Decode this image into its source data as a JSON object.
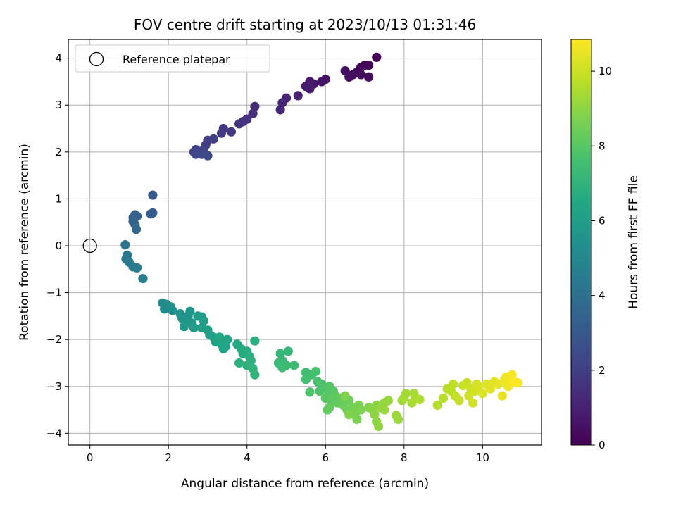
{
  "chart_data": {
    "type": "scatter",
    "title": "FOV centre drift starting at 2023/10/13 01:31:46",
    "xlabel": "Angular distance from reference (arcmin)",
    "ylabel": "Rotation from reference (arcmin)",
    "xlim": [
      -0.55,
      11.5
    ],
    "ylim": [
      -4.25,
      4.4
    ],
    "xticks": [
      0,
      2,
      4,
      6,
      8,
      10
    ],
    "yticks": [
      -4,
      -3,
      -2,
      -1,
      0,
      1,
      2,
      3,
      4
    ],
    "grid": true,
    "legend": {
      "position": "top-left",
      "label": "Reference platepar"
    },
    "reference_point": {
      "x": 0,
      "y": 0
    },
    "colorbar": {
      "label": "Hours from first FF file",
      "colormap": "viridis",
      "range": [
        0,
        10.85
      ],
      "ticks": [
        0,
        2,
        4,
        6,
        8,
        10
      ]
    },
    "points": [
      {
        "x": 7.3,
        "y": 4.02,
        "c": 0.0
      },
      {
        "x": 7.1,
        "y": 3.85,
        "c": 0.1
      },
      {
        "x": 7.0,
        "y": 3.85,
        "c": 0.15
      },
      {
        "x": 6.9,
        "y": 3.8,
        "c": 0.2
      },
      {
        "x": 6.8,
        "y": 3.7,
        "c": 0.25
      },
      {
        "x": 6.9,
        "y": 3.65,
        "c": 0.3
      },
      {
        "x": 7.1,
        "y": 3.6,
        "c": 0.3
      },
      {
        "x": 6.7,
        "y": 3.65,
        "c": 0.35
      },
      {
        "x": 6.6,
        "y": 3.6,
        "c": 0.4
      },
      {
        "x": 6.5,
        "y": 3.73,
        "c": 0.45
      },
      {
        "x": 6.0,
        "y": 3.55,
        "c": 0.55
      },
      {
        "x": 5.9,
        "y": 3.5,
        "c": 0.6
      },
      {
        "x": 5.7,
        "y": 3.45,
        "c": 0.7
      },
      {
        "x": 5.6,
        "y": 3.5,
        "c": 0.75
      },
      {
        "x": 5.5,
        "y": 3.4,
        "c": 0.8
      },
      {
        "x": 5.6,
        "y": 3.35,
        "c": 0.85
      },
      {
        "x": 5.3,
        "y": 3.2,
        "c": 1.0
      },
      {
        "x": 5.0,
        "y": 3.15,
        "c": 1.1
      },
      {
        "x": 4.9,
        "y": 3.05,
        "c": 1.15
      },
      {
        "x": 4.85,
        "y": 2.9,
        "c": 1.2
      },
      {
        "x": 4.2,
        "y": 2.97,
        "c": 1.4
      },
      {
        "x": 4.15,
        "y": 2.82,
        "c": 1.45
      },
      {
        "x": 4.0,
        "y": 2.7,
        "c": 1.55
      },
      {
        "x": 3.9,
        "y": 2.65,
        "c": 1.6
      },
      {
        "x": 3.8,
        "y": 2.6,
        "c": 1.65
      },
      {
        "x": 3.6,
        "y": 2.43,
        "c": 1.75
      },
      {
        "x": 3.4,
        "y": 2.5,
        "c": 1.8
      },
      {
        "x": 3.35,
        "y": 2.4,
        "c": 1.85
      },
      {
        "x": 3.15,
        "y": 2.28,
        "c": 1.95
      },
      {
        "x": 3.0,
        "y": 2.25,
        "c": 2.0
      },
      {
        "x": 2.95,
        "y": 2.15,
        "c": 2.05
      },
      {
        "x": 2.9,
        "y": 2.05,
        "c": 2.1
      },
      {
        "x": 2.8,
        "y": 2.0,
        "c": 2.15
      },
      {
        "x": 2.7,
        "y": 2.05,
        "c": 2.2
      },
      {
        "x": 2.65,
        "y": 2.0,
        "c": 2.25
      },
      {
        "x": 2.7,
        "y": 1.95,
        "c": 2.3
      },
      {
        "x": 2.85,
        "y": 1.95,
        "c": 2.35
      },
      {
        "x": 3.0,
        "y": 1.92,
        "c": 2.4
      },
      {
        "x": 1.6,
        "y": 1.08,
        "c": 3.0
      },
      {
        "x": 1.6,
        "y": 0.7,
        "c": 3.1
      },
      {
        "x": 1.55,
        "y": 0.68,
        "c": 3.15
      },
      {
        "x": 1.15,
        "y": 0.66,
        "c": 3.3
      },
      {
        "x": 1.1,
        "y": 0.6,
        "c": 3.35
      },
      {
        "x": 1.2,
        "y": 0.63,
        "c": 3.4
      },
      {
        "x": 1.1,
        "y": 0.52,
        "c": 3.45
      },
      {
        "x": 1.15,
        "y": 0.45,
        "c": 3.5
      },
      {
        "x": 1.18,
        "y": 0.35,
        "c": 3.6
      },
      {
        "x": 0.9,
        "y": 0.02,
        "c": 4.2
      },
      {
        "x": 0.95,
        "y": -0.2,
        "c": 4.3
      },
      {
        "x": 0.92,
        "y": -0.28,
        "c": 4.35
      },
      {
        "x": 1.0,
        "y": -0.35,
        "c": 4.4
      },
      {
        "x": 1.1,
        "y": -0.45,
        "c": 4.45
      },
      {
        "x": 1.2,
        "y": -0.47,
        "c": 4.5
      },
      {
        "x": 1.35,
        "y": -0.7,
        "c": 4.6
      },
      {
        "x": 1.85,
        "y": -1.22,
        "c": 5.2
      },
      {
        "x": 1.95,
        "y": -1.25,
        "c": 5.25
      },
      {
        "x": 1.9,
        "y": -1.35,
        "c": 5.3
      },
      {
        "x": 2.05,
        "y": -1.3,
        "c": 5.35
      },
      {
        "x": 2.1,
        "y": -1.38,
        "c": 5.4
      },
      {
        "x": 2.3,
        "y": -1.45,
        "c": 5.5
      },
      {
        "x": 2.35,
        "y": -1.55,
        "c": 5.55
      },
      {
        "x": 2.5,
        "y": -1.5,
        "c": 5.6
      },
      {
        "x": 2.55,
        "y": -1.4,
        "c": 5.65
      },
      {
        "x": 2.45,
        "y": -1.62,
        "c": 5.7
      },
      {
        "x": 2.4,
        "y": -1.72,
        "c": 5.75
      },
      {
        "x": 2.6,
        "y": -1.65,
        "c": 5.8
      },
      {
        "x": 2.65,
        "y": -1.75,
        "c": 5.85
      },
      {
        "x": 2.75,
        "y": -1.5,
        "c": 5.9
      },
      {
        "x": 2.85,
        "y": -1.52,
        "c": 5.95
      },
      {
        "x": 2.9,
        "y": -1.6,
        "c": 6.0
      },
      {
        "x": 2.85,
        "y": -1.75,
        "c": 6.0
      },
      {
        "x": 3.0,
        "y": -1.8,
        "c": 6.05
      },
      {
        "x": 3.05,
        "y": -1.9,
        "c": 6.1
      },
      {
        "x": 3.15,
        "y": -1.95,
        "c": 6.15
      },
      {
        "x": 3.2,
        "y": -2.05,
        "c": 6.2
      },
      {
        "x": 3.3,
        "y": -2.0,
        "c": 6.25
      },
      {
        "x": 3.35,
        "y": -2.1,
        "c": 6.3
      },
      {
        "x": 3.45,
        "y": -2.15,
        "c": 6.35
      },
      {
        "x": 3.4,
        "y": -2.2,
        "c": 6.4
      },
      {
        "x": 3.5,
        "y": -2.0,
        "c": 6.4
      },
      {
        "x": 3.3,
        "y": -1.95,
        "c": 6.45
      },
      {
        "x": 3.75,
        "y": -2.1,
        "c": 6.55
      },
      {
        "x": 3.85,
        "y": -2.2,
        "c": 6.6
      },
      {
        "x": 3.9,
        "y": -2.3,
        "c": 6.65
      },
      {
        "x": 4.0,
        "y": -2.25,
        "c": 6.7
      },
      {
        "x": 4.05,
        "y": -2.35,
        "c": 6.75
      },
      {
        "x": 4.2,
        "y": -2.03,
        "c": 6.8
      },
      {
        "x": 4.1,
        "y": -2.45,
        "c": 6.85
      },
      {
        "x": 3.8,
        "y": -2.5,
        "c": 6.9
      },
      {
        "x": 4.0,
        "y": -2.55,
        "c": 6.95
      },
      {
        "x": 4.15,
        "y": -2.62,
        "c": 7.0
      },
      {
        "x": 4.2,
        "y": -2.75,
        "c": 7.05
      },
      {
        "x": 4.85,
        "y": -2.3,
        "c": 7.15
      },
      {
        "x": 5.05,
        "y": -2.25,
        "c": 7.2
      },
      {
        "x": 4.8,
        "y": -2.5,
        "c": 7.25
      },
      {
        "x": 4.9,
        "y": -2.45,
        "c": 7.3
      },
      {
        "x": 5.0,
        "y": -2.55,
        "c": 7.35
      },
      {
        "x": 5.2,
        "y": -2.55,
        "c": 7.4
      },
      {
        "x": 4.9,
        "y": -2.6,
        "c": 7.45
      },
      {
        "x": 5.5,
        "y": -2.7,
        "c": 7.5
      },
      {
        "x": 5.65,
        "y": -2.75,
        "c": 7.55
      },
      {
        "x": 5.5,
        "y": -2.85,
        "c": 7.6
      },
      {
        "x": 5.75,
        "y": -2.68,
        "c": 7.65
      },
      {
        "x": 5.8,
        "y": -2.9,
        "c": 7.7
      },
      {
        "x": 5.9,
        "y": -2.95,
        "c": 7.75
      },
      {
        "x": 5.85,
        "y": -3.1,
        "c": 7.8
      },
      {
        "x": 5.6,
        "y": -3.12,
        "c": 7.8
      },
      {
        "x": 6.0,
        "y": -3.05,
        "c": 7.85
      },
      {
        "x": 6.1,
        "y": -3.0,
        "c": 7.9
      },
      {
        "x": 6.1,
        "y": -3.15,
        "c": 7.95
      },
      {
        "x": 6.2,
        "y": -3.1,
        "c": 8.0
      },
      {
        "x": 6.0,
        "y": -3.25,
        "c": 8.05
      },
      {
        "x": 6.15,
        "y": -3.3,
        "c": 8.1
      },
      {
        "x": 6.25,
        "y": -3.2,
        "c": 8.15
      },
      {
        "x": 6.3,
        "y": -3.35,
        "c": 8.2
      },
      {
        "x": 6.1,
        "y": -3.45,
        "c": 8.25
      },
      {
        "x": 6.05,
        "y": -3.5,
        "c": 8.25
      },
      {
        "x": 6.4,
        "y": -3.25,
        "c": 8.3
      },
      {
        "x": 6.45,
        "y": -3.4,
        "c": 8.35
      },
      {
        "x": 6.6,
        "y": -3.3,
        "c": 8.4
      },
      {
        "x": 6.55,
        "y": -3.5,
        "c": 8.45
      },
      {
        "x": 6.65,
        "y": -3.55,
        "c": 8.5
      },
      {
        "x": 6.7,
        "y": -3.45,
        "c": 8.55
      },
      {
        "x": 6.75,
        "y": -3.6,
        "c": 8.6
      },
      {
        "x": 6.8,
        "y": -3.7,
        "c": 8.65
      },
      {
        "x": 6.9,
        "y": -3.5,
        "c": 8.7
      },
      {
        "x": 6.85,
        "y": -3.4,
        "c": 8.7
      },
      {
        "x": 6.5,
        "y": -3.2,
        "c": 8.75
      },
      {
        "x": 6.6,
        "y": -3.6,
        "c": 8.8
      },
      {
        "x": 7.1,
        "y": -3.45,
        "c": 8.85
      },
      {
        "x": 7.2,
        "y": -3.5,
        "c": 8.9
      },
      {
        "x": 7.3,
        "y": -3.4,
        "c": 8.95
      },
      {
        "x": 7.25,
        "y": -3.6,
        "c": 9.0
      },
      {
        "x": 7.3,
        "y": -3.75,
        "c": 9.0
      },
      {
        "x": 7.35,
        "y": -3.85,
        "c": 9.05
      },
      {
        "x": 7.4,
        "y": -3.45,
        "c": 9.1
      },
      {
        "x": 7.5,
        "y": -3.35,
        "c": 9.1
      },
      {
        "x": 7.6,
        "y": -3.3,
        "c": 9.15
      },
      {
        "x": 7.5,
        "y": -3.5,
        "c": 9.15
      },
      {
        "x": 7.8,
        "y": -3.62,
        "c": 9.2
      },
      {
        "x": 7.85,
        "y": -3.7,
        "c": 9.2
      },
      {
        "x": 7.95,
        "y": -3.3,
        "c": 9.3
      },
      {
        "x": 8.0,
        "y": -3.25,
        "c": 9.35
      },
      {
        "x": 8.05,
        "y": -3.15,
        "c": 9.35
      },
      {
        "x": 8.25,
        "y": -3.15,
        "c": 9.4
      },
      {
        "x": 8.2,
        "y": -3.35,
        "c": 9.45
      },
      {
        "x": 8.3,
        "y": -3.25,
        "c": 9.45
      },
      {
        "x": 8.4,
        "y": -3.28,
        "c": 9.5
      },
      {
        "x": 8.85,
        "y": -3.4,
        "c": 9.6
      },
      {
        "x": 9.0,
        "y": -3.25,
        "c": 9.65
      },
      {
        "x": 9.1,
        "y": -3.05,
        "c": 9.7
      },
      {
        "x": 9.2,
        "y": -3.1,
        "c": 9.75
      },
      {
        "x": 9.25,
        "y": -2.95,
        "c": 9.8
      },
      {
        "x": 9.3,
        "y": -3.2,
        "c": 9.85
      },
      {
        "x": 9.4,
        "y": -3.3,
        "c": 9.9
      },
      {
        "x": 9.5,
        "y": -2.98,
        "c": 9.95
      },
      {
        "x": 9.6,
        "y": -2.92,
        "c": 10.0
      },
      {
        "x": 9.7,
        "y": -3.05,
        "c": 10.0
      },
      {
        "x": 9.65,
        "y": -3.2,
        "c": 10.05
      },
      {
        "x": 9.8,
        "y": -3.1,
        "c": 10.1
      },
      {
        "x": 9.75,
        "y": -3.35,
        "c": 10.1
      },
      {
        "x": 9.85,
        "y": -2.95,
        "c": 10.15
      },
      {
        "x": 9.9,
        "y": -3.0,
        "c": 10.2
      },
      {
        "x": 10.0,
        "y": -3.15,
        "c": 10.25
      },
      {
        "x": 10.1,
        "y": -2.95,
        "c": 10.3
      },
      {
        "x": 10.2,
        "y": -3.05,
        "c": 10.35
      },
      {
        "x": 10.3,
        "y": -2.9,
        "c": 10.4
      },
      {
        "x": 10.4,
        "y": -2.95,
        "c": 10.45
      },
      {
        "x": 10.5,
        "y": -3.2,
        "c": 10.5
      },
      {
        "x": 10.55,
        "y": -2.88,
        "c": 10.55
      },
      {
        "x": 10.6,
        "y": -2.8,
        "c": 10.6
      },
      {
        "x": 10.65,
        "y": -3.0,
        "c": 10.65
      },
      {
        "x": 10.7,
        "y": -2.85,
        "c": 10.7
      },
      {
        "x": 10.75,
        "y": -2.75,
        "c": 10.75
      },
      {
        "x": 10.8,
        "y": -2.9,
        "c": 10.8
      },
      {
        "x": 10.9,
        "y": -2.92,
        "c": 10.85
      }
    ]
  }
}
